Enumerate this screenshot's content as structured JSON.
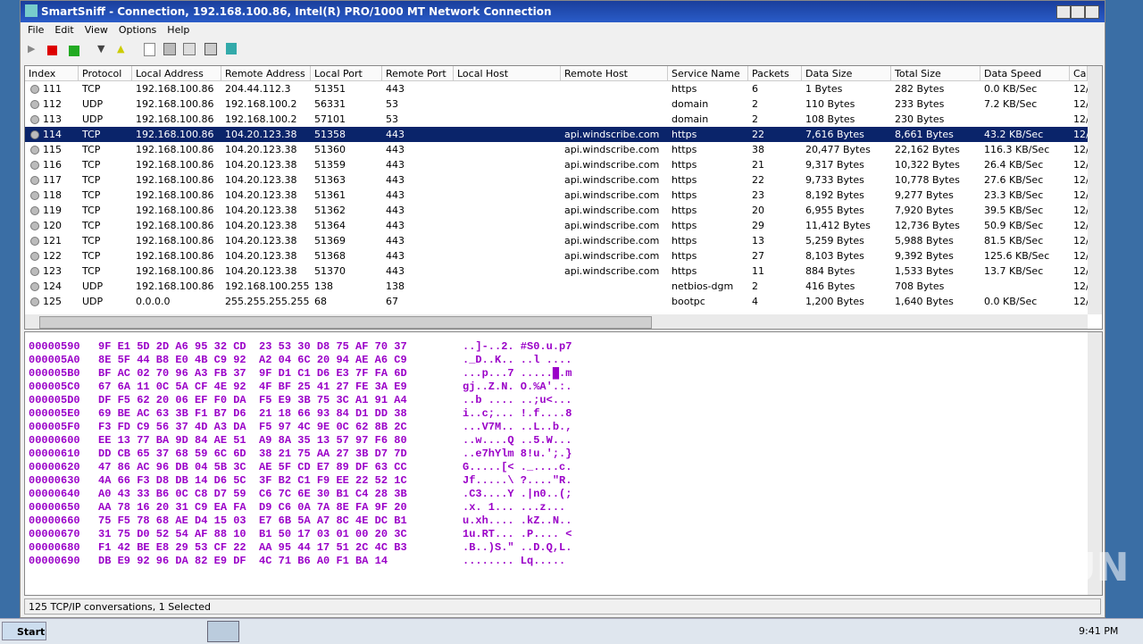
{
  "window": {
    "title": "SmartSniff - Connection, 192.168.100.86, Intel(R) PRO/1000 MT Network Connection",
    "menu": [
      "File",
      "Edit",
      "View",
      "Options",
      "Help"
    ]
  },
  "table": {
    "columns": [
      "Index",
      "Protocol",
      "Local Address",
      "Remote Address",
      "Local Port",
      "Remote Port",
      "Local Host",
      "Remote Host",
      "Service Name",
      "Packets",
      "Data Size",
      "Total Size",
      "Data Speed",
      "Cap"
    ],
    "selected_row": 3,
    "rows": [
      [
        "111",
        "TCP",
        "192.168.100.86",
        "204.44.112.3",
        "51351",
        "443",
        null,
        null,
        "https",
        "6",
        "1 Bytes",
        "282 Bytes",
        "0.0 KB/Sec",
        "12/"
      ],
      [
        "112",
        "UDP",
        "192.168.100.86",
        "192.168.100.2",
        "56331",
        "53",
        null,
        null,
        "domain",
        "2",
        "110 Bytes",
        "233 Bytes",
        "7.2 KB/Sec",
        "12/"
      ],
      [
        "113",
        "UDP",
        "192.168.100.86",
        "192.168.100.2",
        "57101",
        "53",
        null,
        null,
        "domain",
        "2",
        "108 Bytes",
        "230 Bytes",
        null,
        "12/"
      ],
      [
        "114",
        "TCP",
        "192.168.100.86",
        "104.20.123.38",
        "51358",
        "443",
        null,
        "api.windscribe.com",
        "https",
        "22",
        "7,616 Bytes",
        "8,661 Bytes",
        "43.2 KB/Sec",
        "12/"
      ],
      [
        "115",
        "TCP",
        "192.168.100.86",
        "104.20.123.38",
        "51360",
        "443",
        null,
        "api.windscribe.com",
        "https",
        "38",
        "20,477 Bytes",
        "22,162 Bytes",
        "116.3 KB/Sec",
        "12/"
      ],
      [
        "116",
        "TCP",
        "192.168.100.86",
        "104.20.123.38",
        "51359",
        "443",
        null,
        "api.windscribe.com",
        "https",
        "21",
        "9,317 Bytes",
        "10,322 Bytes",
        "26.4 KB/Sec",
        "12/"
      ],
      [
        "117",
        "TCP",
        "192.168.100.86",
        "104.20.123.38",
        "51363",
        "443",
        null,
        "api.windscribe.com",
        "https",
        "22",
        "9,733 Bytes",
        "10,778 Bytes",
        "27.6 KB/Sec",
        "12/"
      ],
      [
        "118",
        "TCP",
        "192.168.100.86",
        "104.20.123.38",
        "51361",
        "443",
        null,
        "api.windscribe.com",
        "https",
        "23",
        "8,192 Bytes",
        "9,277 Bytes",
        "23.3 KB/Sec",
        "12/"
      ],
      [
        "119",
        "TCP",
        "192.168.100.86",
        "104.20.123.38",
        "51362",
        "443",
        null,
        "api.windscribe.com",
        "https",
        "20",
        "6,955 Bytes",
        "7,920 Bytes",
        "39.5 KB/Sec",
        "12/"
      ],
      [
        "120",
        "TCP",
        "192.168.100.86",
        "104.20.123.38",
        "51364",
        "443",
        null,
        "api.windscribe.com",
        "https",
        "29",
        "11,412 Bytes",
        "12,736 Bytes",
        "50.9 KB/Sec",
        "12/"
      ],
      [
        "121",
        "TCP",
        "192.168.100.86",
        "104.20.123.38",
        "51369",
        "443",
        null,
        "api.windscribe.com",
        "https",
        "13",
        "5,259 Bytes",
        "5,988 Bytes",
        "81.5 KB/Sec",
        "12/"
      ],
      [
        "122",
        "TCP",
        "192.168.100.86",
        "104.20.123.38",
        "51368",
        "443",
        null,
        "api.windscribe.com",
        "https",
        "27",
        "8,103 Bytes",
        "9,392 Bytes",
        "125.6 KB/Sec",
        "12/"
      ],
      [
        "123",
        "TCP",
        "192.168.100.86",
        "104.20.123.38",
        "51370",
        "443",
        null,
        "api.windscribe.com",
        "https",
        "11",
        "884 Bytes",
        "1,533 Bytes",
        "13.7 KB/Sec",
        "12/"
      ],
      [
        "124",
        "UDP",
        "192.168.100.86",
        "192.168.100.255",
        "138",
        "138",
        null,
        null,
        "netbios-dgm",
        "2",
        "416 Bytes",
        "708 Bytes",
        null,
        "12/"
      ],
      [
        "125",
        "UDP",
        "0.0.0.0",
        "255.255.255.255",
        "68",
        "67",
        null,
        null,
        "bootpc",
        "4",
        "1,200 Bytes",
        "1,640 Bytes",
        "0.0 KB/Sec",
        "12/"
      ]
    ]
  },
  "hex": [
    {
      "offset": "00000590",
      "hex": "9F E1 5D 2D A6 95 32 CD  23 53 30 D8 75 AF 70 37",
      "ascii": "..]-..2. #S0.u.p7"
    },
    {
      "offset": "000005A0",
      "hex": "8E 5F 44 B8 E0 4B C9 92  A2 04 6C 20 94 AE A6 C9",
      "ascii": "._D..K.. ..l ...."
    },
    {
      "offset": "000005B0",
      "hex": "BF AC 02 70 96 A3 FB 37  9F D1 C1 D6 E3 7F FA 6D",
      "ascii": "...p...7 .....█.m"
    },
    {
      "offset": "000005C0",
      "hex": "67 6A 11 0C 5A CF 4E 92  4F BF 25 41 27 FE 3A E9",
      "ascii": "gj..Z.N. O.%A'.:."
    },
    {
      "offset": "000005D0",
      "hex": "DF F5 62 20 06 EF F0 DA  F5 E9 3B 75 3C A1 91 A4",
      "ascii": "..b .... ..;u<..."
    },
    {
      "offset": "000005E0",
      "hex": "69 BE AC 63 3B F1 B7 D6  21 18 66 93 84 D1 DD 38",
      "ascii": "i..c;... !.f....8"
    },
    {
      "offset": "000005F0",
      "hex": "F3 FD C9 56 37 4D A3 DA  F5 97 4C 9E 0C 62 8B 2C",
      "ascii": "...V7M.. ..L..b.,"
    },
    {
      "offset": "00000600",
      "hex": "EE 13 77 BA 9D 84 AE 51  A9 8A 35 13 57 97 F6 80",
      "ascii": "..w....Q ..5.W..."
    },
    {
      "offset": "00000610",
      "hex": "DD CB 65 37 68 59 6C 6D  38 21 75 AA 27 3B D7 7D",
      "ascii": "..e7hYlm 8!u.';.}"
    },
    {
      "offset": "00000620",
      "hex": "47 86 AC 96 DB 04 5B 3C  AE 5F CD E7 89 DF 63 CC",
      "ascii": "G.....[< ._....c."
    },
    {
      "offset": "00000630",
      "hex": "4A 66 F3 D8 DB 14 D6 5C  3F B2 C1 F9 EE 22 52 1C",
      "ascii": "Jf.....\\ ?....\"R."
    },
    {
      "offset": "00000640",
      "hex": "A0 43 33 B6 0C C8 D7 59  C6 7C 6E 30 B1 C4 28 3B",
      "ascii": ".C3....Y .|n0..(;"
    },
    {
      "offset": "00000650",
      "hex": "AA 78 16 20 31 C9 EA FA  D9 C6 0A 7A 8E FA 9F 20",
      "ascii": ".x. 1... ...z... "
    },
    {
      "offset": "00000660",
      "hex": "75 F5 78 68 AE D4 15 03  E7 6B 5A A7 8C 4E DC B1",
      "ascii": "u.xh.... .kZ..N.."
    },
    {
      "offset": "00000670",
      "hex": "31 75 D0 52 54 AF 88 10  B1 50 17 03 01 00 20 3C",
      "ascii": "1u.RT... .P.... <"
    },
    {
      "offset": "00000680",
      "hex": "F1 42 BE E8 29 53 CF 22  AA 95 44 17 51 2C 4C B3",
      "ascii": ".B..)S.\" ..D.Q,L."
    },
    {
      "offset": "00000690",
      "hex": "DB E9 92 96 DA 82 E9 DF  4C 71 B6 A0 F1 BA 14",
      "ascii": "........ Lq....."
    }
  ],
  "status": "125 TCP/IP conversations, 1 Selected",
  "taskbar": {
    "start": "Start",
    "clock": "9:41 PM"
  },
  "watermark": "ANY RUN"
}
